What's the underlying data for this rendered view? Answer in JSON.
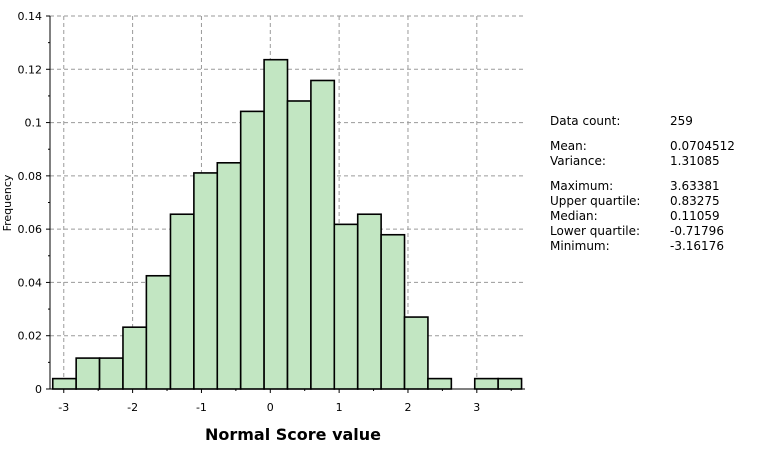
{
  "chart_data": {
    "type": "bar",
    "xlabel": "Normal Score value",
    "ylabel": "Frequency",
    "xlim": [
      -3.2,
      3.7
    ],
    "ylim": [
      0,
      0.14
    ],
    "xticks": [
      "-3",
      "-2",
      "-1",
      "0",
      "1",
      "2",
      "3"
    ],
    "yticks": [
      "0",
      "0.02",
      "0.04",
      "0.06",
      "0.08",
      "0.1",
      "0.12",
      "0.14"
    ],
    "grid": true,
    "bar_color": "#c2e6c2",
    "bins": [
      {
        "x0": -3.16,
        "x1": -2.82,
        "value": 0.0039
      },
      {
        "x0": -2.82,
        "x1": -2.48,
        "value": 0.0116
      },
      {
        "x0": -2.48,
        "x1": -2.14,
        "value": 0.0116
      },
      {
        "x0": -2.14,
        "x1": -1.8,
        "value": 0.0232
      },
      {
        "x0": -1.8,
        "x1": -1.45,
        "value": 0.0425
      },
      {
        "x0": -1.45,
        "x1": -1.11,
        "value": 0.0656
      },
      {
        "x0": -1.11,
        "x1": -0.77,
        "value": 0.0811
      },
      {
        "x0": -0.77,
        "x1": -0.43,
        "value": 0.0849
      },
      {
        "x0": -0.43,
        "x1": -0.09,
        "value": 0.1042
      },
      {
        "x0": -0.09,
        "x1": 0.25,
        "value": 0.1236
      },
      {
        "x0": 0.25,
        "x1": 0.59,
        "value": 0.1081
      },
      {
        "x0": 0.59,
        "x1": 0.93,
        "value": 0.1158
      },
      {
        "x0": 0.93,
        "x1": 1.27,
        "value": 0.0618
      },
      {
        "x0": 1.27,
        "x1": 1.61,
        "value": 0.0656
      },
      {
        "x0": 1.61,
        "x1": 1.95,
        "value": 0.0579
      },
      {
        "x0": 1.95,
        "x1": 2.29,
        "value": 0.027
      },
      {
        "x0": 2.29,
        "x1": 2.63,
        "value": 0.0039
      },
      {
        "x0": 2.63,
        "x1": 2.97,
        "value": 0
      },
      {
        "x0": 2.97,
        "x1": 3.31,
        "value": 0.0039
      },
      {
        "x0": 3.31,
        "x1": 3.65,
        "value": 0.0039
      }
    ]
  },
  "stats": {
    "data_count": {
      "label": "Data count:",
      "value": "259"
    },
    "mean": {
      "label": "Mean:",
      "value": "0.0704512"
    },
    "variance": {
      "label": "Variance:",
      "value": "1.31085"
    },
    "maximum": {
      "label": "Maximum:",
      "value": "3.63381"
    },
    "upper_quartile": {
      "label": "Upper quartile:",
      "value": "0.83275"
    },
    "median": {
      "label": "Median:",
      "value": "0.11059"
    },
    "lower_quartile": {
      "label": "Lower quartile:",
      "value": "-0.71796"
    },
    "minimum": {
      "label": "Minimum:",
      "value": "-3.16176"
    }
  }
}
